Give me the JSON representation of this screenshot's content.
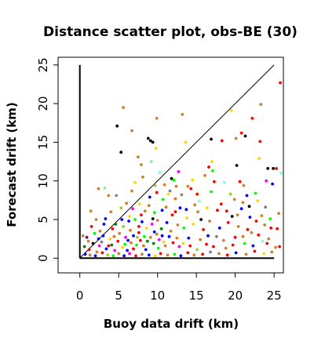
{
  "chart_data": {
    "type": "scatter",
    "title": "Distance scatter plot, obs-BE (30)",
    "xlabel": "Buoy data drift (km)",
    "ylabel": "Forecast drift (km)",
    "xlim": [
      -2.8,
      26.2
    ],
    "ylim": [
      -1.9,
      26.0
    ],
    "xticks": [
      "0",
      "5",
      "10",
      "15",
      "20",
      "25"
    ],
    "yticks": [
      "0",
      "5",
      "10",
      "15",
      "20",
      "25"
    ],
    "grid": false,
    "legend": "none",
    "reference_lines": [
      {
        "kind": "diagonal",
        "from": [
          0,
          0
        ],
        "to": [
          25,
          25
        ]
      },
      {
        "kind": "vertical",
        "from": [
          0,
          0
        ],
        "to": [
          0,
          25
        ]
      },
      {
        "kind": "horizontal",
        "from": [
          0,
          0
        ],
        "to": [
          25,
          0
        ]
      }
    ],
    "points": [
      [
        4.8,
        17.1,
        "#000000"
      ],
      [
        5.3,
        13.7,
        "#000000"
      ],
      [
        5.6,
        19.5,
        "#cd7f32"
      ],
      [
        6.7,
        16.5,
        "#cd7f32"
      ],
      [
        8.8,
        15.5,
        "#000000"
      ],
      [
        9.1,
        15.2,
        "#000000"
      ],
      [
        9.4,
        15.0,
        "#000000"
      ],
      [
        9.8,
        14.2,
        "#ffd700"
      ],
      [
        9.9,
        18.1,
        "#cd7f32"
      ],
      [
        13.2,
        18.6,
        "#cd7f32"
      ],
      [
        13.6,
        15.0,
        "#ffd700"
      ],
      [
        16.9,
        15.4,
        "#000000"
      ],
      [
        17.0,
        12.5,
        "#ffd700"
      ],
      [
        18.3,
        15.2,
        "#ff0000"
      ],
      [
        19.5,
        19.1,
        "#ffd700"
      ],
      [
        20.1,
        15.5,
        "#cd7f32"
      ],
      [
        20.8,
        16.2,
        "#ff0000"
      ],
      [
        21.3,
        15.8,
        "#000000"
      ],
      [
        22.2,
        18.1,
        "#ff0000"
      ],
      [
        23.2,
        15.1,
        "#ff0000"
      ],
      [
        23.3,
        19.9,
        "#cd7f32"
      ],
      [
        25.8,
        22.7,
        "#ff0000"
      ],
      [
        7.5,
        13.1,
        "#cd7f32"
      ],
      [
        7.9,
        12.1,
        "#cd7f32"
      ],
      [
        8.1,
        10.5,
        "#cd7f32"
      ],
      [
        9.2,
        12.5,
        "#90ee90"
      ],
      [
        9.7,
        9.4,
        "#9acd32"
      ],
      [
        10.3,
        11.1,
        "#7fffd4"
      ],
      [
        12.7,
        11.2,
        "#ff00ff"
      ],
      [
        12.1,
        10.1,
        "#00ff00"
      ],
      [
        13.9,
        9.3,
        "#cd7f32"
      ],
      [
        16.6,
        11.8,
        "#ff0000"
      ],
      [
        17.1,
        11.3,
        "#00ff00"
      ],
      [
        20.2,
        12.0,
        "#000000"
      ],
      [
        21.1,
        9.4,
        "#cd7f32"
      ],
      [
        23.1,
        12.9,
        "#ffd700"
      ],
      [
        24.2,
        11.6,
        "#000000"
      ],
      [
        24.9,
        11.6,
        "#000000"
      ],
      [
        25.3,
        11.6,
        "#ff0000"
      ],
      [
        25.9,
        11.0,
        "#7fffd4"
      ],
      [
        24.0,
        10.0,
        "#ff00ff"
      ],
      [
        24.8,
        9.6,
        "#0000ff"
      ],
      [
        22.6,
        8.4,
        "#00ff00"
      ],
      [
        21.0,
        7.2,
        "#cd7f32"
      ],
      [
        19.4,
        8.3,
        "#9acd32"
      ],
      [
        18.2,
        7.0,
        "#ff0000"
      ],
      [
        16.9,
        8.6,
        "#00ff00"
      ],
      [
        15.4,
        7.4,
        "#7fffd4"
      ],
      [
        14.3,
        9.0,
        "#ff0000"
      ],
      [
        12.9,
        6.5,
        "#0000ff"
      ],
      [
        11.4,
        8.3,
        "#ffd700"
      ],
      [
        10.6,
        6.2,
        "#0000ff"
      ],
      [
        9.4,
        5.1,
        "#000000"
      ],
      [
        8.9,
        6.8,
        "#cd7f32"
      ],
      [
        7.6,
        4.1,
        "#ff0000"
      ],
      [
        6.4,
        5.4,
        "#ffd700"
      ],
      [
        5.4,
        5.0,
        "#0000ff"
      ],
      [
        4.6,
        4.4,
        "#008000"
      ],
      [
        3.7,
        8.1,
        "#cd7f32"
      ],
      [
        2.4,
        9.0,
        "#cd7f32"
      ],
      [
        3.2,
        9.1,
        "#90ee90"
      ],
      [
        1.4,
        6.1,
        "#cd7f32"
      ],
      [
        4.7,
        8.1,
        "#778899"
      ],
      [
        6.7,
        8.7,
        "#cd7f32"
      ],
      [
        7.1,
        9.8,
        "#ffd700"
      ],
      [
        10.9,
        9.5,
        "#cd7f32"
      ],
      [
        11.6,
        8.7,
        "#808080"
      ],
      [
        12.3,
        7.7,
        "#cd7f32"
      ],
      [
        13.8,
        5.2,
        "#ffd700"
      ],
      [
        14.8,
        6.9,
        "#cd7f32"
      ],
      [
        15.6,
        5.0,
        "#000000"
      ],
      [
        17.7,
        6.2,
        "#ff0000"
      ],
      [
        19.6,
        5.4,
        "#000000"
      ],
      [
        20.8,
        6.4,
        "#0000ff"
      ],
      [
        21.8,
        6.7,
        "#000000"
      ],
      [
        22.7,
        4.8,
        "#ff0000"
      ],
      [
        23.8,
        4.3,
        "#cd7f32"
      ],
      [
        24.6,
        3.9,
        "#ff0000"
      ],
      [
        25.4,
        3.8,
        "#ff0000"
      ],
      [
        25.7,
        1.5,
        "#ff0000"
      ],
      [
        25.2,
        1.4,
        "#cd7f32"
      ],
      [
        23.5,
        2.2,
        "#7fffd4"
      ],
      [
        22.1,
        3.3,
        "#cd7f32"
      ],
      [
        21.2,
        1.9,
        "#00ff00"
      ],
      [
        20.0,
        2.7,
        "#ff0000"
      ],
      [
        18.8,
        1.3,
        "#cd7f32"
      ],
      [
        17.6,
        2.8,
        "#808080"
      ],
      [
        16.3,
        1.8,
        "#ff0000"
      ],
      [
        15.1,
        1.1,
        "#9acd32"
      ],
      [
        14.0,
        2.6,
        "#0000ff"
      ],
      [
        12.8,
        1.5,
        "#ff00ff"
      ],
      [
        11.7,
        3.5,
        "#cd7f32"
      ],
      [
        10.8,
        2.1,
        "#ffd700"
      ],
      [
        10.1,
        1.3,
        "#00ff00"
      ],
      [
        9.6,
        3.4,
        "#0000ff"
      ],
      [
        8.7,
        2.2,
        "#008000"
      ],
      [
        8.2,
        1.6,
        "#cd7f32"
      ],
      [
        7.4,
        2.7,
        "#9acd32"
      ],
      [
        6.9,
        1.2,
        "#ff0000"
      ],
      [
        6.2,
        2.3,
        "#0000ff"
      ],
      [
        5.8,
        1.8,
        "#00ff00"
      ],
      [
        5.1,
        3.2,
        "#cd7f32"
      ],
      [
        4.5,
        1.0,
        "#ff00ff"
      ],
      [
        3.9,
        2.5,
        "#ffd700"
      ],
      [
        3.4,
        1.2,
        "#0000ff"
      ],
      [
        2.8,
        2.1,
        "#808080"
      ],
      [
        2.2,
        0.8,
        "#cd7f32"
      ],
      [
        1.7,
        1.9,
        "#000000"
      ],
      [
        1.2,
        1.1,
        "#ff0000"
      ],
      [
        0.7,
        0.5,
        "#0000ff"
      ],
      [
        0.4,
        2.9,
        "#cd7f32"
      ],
      [
        0.9,
        2.7,
        "#800080"
      ],
      [
        1.9,
        3.2,
        "#00ff00"
      ],
      [
        2.6,
        3.5,
        "#cd7f32"
      ],
      [
        3.1,
        4.4,
        "#0000ff"
      ],
      [
        4.2,
        3.8,
        "#ff0000"
      ],
      [
        5.6,
        4.1,
        "#9acd32"
      ],
      [
        6.5,
        3.6,
        "#cd7f32"
      ],
      [
        7.1,
        5.0,
        "#00ff00"
      ],
      [
        8.0,
        4.7,
        "#0000ff"
      ],
      [
        8.6,
        3.9,
        "#ffd700"
      ],
      [
        9.3,
        4.4,
        "#ff00ff"
      ],
      [
        10.0,
        4.9,
        "#cd7f32"
      ],
      [
        10.5,
        3.8,
        "#008000"
      ],
      [
        11.2,
        4.6,
        "#0000ff"
      ],
      [
        11.9,
        5.6,
        "#ff0000"
      ],
      [
        12.6,
        4.3,
        "#cd7f32"
      ],
      [
        13.4,
        3.9,
        "#00ff00"
      ],
      [
        14.6,
        4.4,
        "#ffd700"
      ],
      [
        15.9,
        3.7,
        "#ff0000"
      ],
      [
        16.7,
        4.8,
        "#cd7f32"
      ],
      [
        18.0,
        3.9,
        "#0000ff"
      ],
      [
        19.1,
        4.6,
        "#ff0000"
      ],
      [
        20.4,
        4.1,
        "#cd7f32"
      ],
      [
        21.6,
        3.7,
        "#ff0000"
      ],
      [
        23.0,
        3.0,
        "#ff0000"
      ],
      [
        24.3,
        2.5,
        "#cd7f32"
      ],
      [
        25.6,
        5.8,
        "#cd7f32"
      ],
      [
        23.9,
        6.6,
        "#808080"
      ],
      [
        22.9,
        7.4,
        "#ffd700"
      ],
      [
        21.5,
        8.1,
        "#0000ff"
      ],
      [
        20.6,
        9.9,
        "#ff0000"
      ],
      [
        19.9,
        7.6,
        "#cd7f32"
      ],
      [
        18.6,
        9.8,
        "#7fffd4"
      ],
      [
        17.3,
        9.9,
        "#ff0000"
      ],
      [
        16.1,
        10.7,
        "#cd7f32"
      ],
      [
        15.1,
        8.3,
        "#ff0000"
      ],
      [
        14.5,
        10.1,
        "#ffd700"
      ],
      [
        13.1,
        8.2,
        "#808080"
      ],
      [
        12.4,
        9.3,
        "#cd7f32"
      ],
      [
        11.8,
        10.3,
        "#000000"
      ],
      [
        10.7,
        7.6,
        "#00ff00"
      ],
      [
        9.9,
        8.5,
        "#ff0000"
      ],
      [
        9.0,
        7.9,
        "#0000ff"
      ],
      [
        8.4,
        6.1,
        "#cd7f32"
      ],
      [
        7.7,
        7.0,
        "#ffd700"
      ],
      [
        6.8,
        6.4,
        "#ff00ff"
      ],
      [
        6.0,
        7.1,
        "#cd7f32"
      ],
      [
        5.3,
        6.5,
        "#9acd32"
      ],
      [
        4.0,
        6.0,
        "#cd7f32"
      ],
      [
        3.3,
        5.1,
        "#0000ff"
      ],
      [
        2.1,
        5.0,
        "#cd7f32"
      ],
      [
        1.5,
        4.1,
        "#ff0000"
      ],
      [
        0.6,
        1.5,
        "#008000"
      ],
      [
        1.3,
        0.4,
        "#cd7f32"
      ],
      [
        2.0,
        0.3,
        "#0000ff"
      ],
      [
        2.9,
        0.7,
        "#ff0000"
      ],
      [
        3.6,
        0.4,
        "#9acd32"
      ],
      [
        4.3,
        0.3,
        "#00ff00"
      ],
      [
        5.0,
        0.6,
        "#cd7f32"
      ],
      [
        5.7,
        0.3,
        "#0000ff"
      ],
      [
        6.4,
        0.6,
        "#ff00ff"
      ],
      [
        7.2,
        0.3,
        "#ff0000"
      ],
      [
        8.0,
        0.5,
        "#cd7f32"
      ],
      [
        8.9,
        0.4,
        "#0000ff"
      ],
      [
        9.7,
        0.3,
        "#ffd700"
      ],
      [
        10.4,
        0.6,
        "#ff0000"
      ],
      [
        11.3,
        0.4,
        "#cd7f32"
      ],
      [
        12.2,
        0.5,
        "#00ff00"
      ],
      [
        13.0,
        0.3,
        "#0000ff"
      ],
      [
        13.9,
        0.7,
        "#ff0000"
      ],
      [
        14.7,
        0.4,
        "#cd7f32"
      ],
      [
        15.8,
        0.5,
        "#ff0000"
      ],
      [
        16.8,
        0.8,
        "#808080"
      ],
      [
        17.9,
        0.6,
        "#cd7f32"
      ],
      [
        19.0,
        0.4,
        "#ff0000"
      ],
      [
        20.1,
        0.7,
        "#0000ff"
      ],
      [
        21.4,
        0.5,
        "#cd7f32"
      ],
      [
        22.5,
        0.9,
        "#ff0000"
      ],
      [
        23.7,
        0.6,
        "#ffd700"
      ],
      [
        24.7,
        0.8,
        "#cd7f32"
      ],
      [
        2.5,
        1.6,
        "#ff00ff"
      ],
      [
        3.0,
        2.9,
        "#0000ff"
      ],
      [
        4.1,
        1.7,
        "#008000"
      ],
      [
        4.9,
        2.2,
        "#ff0000"
      ],
      [
        5.5,
        1.4,
        "#ffd700"
      ],
      [
        6.1,
        1.0,
        "#0000ff"
      ],
      [
        6.6,
        2.0,
        "#cd7f32"
      ],
      [
        7.3,
        1.7,
        "#00ff00"
      ],
      [
        7.8,
        2.3,
        "#ff0000"
      ],
      [
        8.5,
        1.1,
        "#0000ff"
      ],
      [
        9.1,
        2.7,
        "#cd7f32"
      ],
      [
        9.5,
        1.9,
        "#008000"
      ],
      [
        10.2,
        2.4,
        "#ff00ff"
      ],
      [
        11.0,
        1.6,
        "#cd7f32"
      ],
      [
        11.5,
        2.8,
        "#0000ff"
      ],
      [
        12.0,
        2.0,
        "#ff0000"
      ],
      [
        12.5,
        2.6,
        "#cd7f32"
      ],
      [
        13.3,
        1.9,
        "#ffd700"
      ],
      [
        14.2,
        1.6,
        "#ff0000"
      ],
      [
        15.5,
        2.4,
        "#cd7f32"
      ],
      [
        16.5,
        2.9,
        "#0000ff"
      ],
      [
        17.2,
        1.5,
        "#ff0000"
      ],
      [
        18.5,
        2.3,
        "#cd7f32"
      ],
      [
        19.7,
        1.7,
        "#ff0000"
      ],
      [
        21.0,
        2.8,
        "#cd7f32"
      ],
      [
        22.3,
        1.6,
        "#0000ff"
      ],
      [
        24.1,
        1.9,
        "#ff0000"
      ],
      [
        6.9,
        2.9,
        "#0000ff"
      ],
      [
        7.6,
        3.3,
        "#ff0000"
      ],
      [
        8.3,
        2.8,
        "#00ff00"
      ],
      [
        9.9,
        3.1,
        "#cd7f32"
      ],
      [
        10.6,
        2.9,
        "#0000ff"
      ],
      [
        5.9,
        2.7,
        "#ff00ff"
      ],
      [
        4.4,
        2.8,
        "#cd7f32"
      ],
      [
        3.7,
        1.6,
        "#ff0000"
      ],
      [
        2.4,
        2.5,
        "#0000ff"
      ],
      [
        1.1,
        2.2,
        "#cd7f32"
      ],
      [
        6.3,
        4.8,
        "#0000ff"
      ],
      [
        7.9,
        5.6,
        "#ff0000"
      ],
      [
        9.6,
        5.9,
        "#00ff00"
      ],
      [
        11.1,
        6.6,
        "#cd7f32"
      ],
      [
        12.3,
        6.0,
        "#ff0000"
      ],
      [
        13.7,
        6.3,
        "#0000ff"
      ],
      [
        15.2,
        6.0,
        "#cd7f32"
      ],
      [
        16.4,
        6.5,
        "#ffd700"
      ],
      [
        18.9,
        6.1,
        "#ff0000"
      ],
      [
        20.3,
        5.6,
        "#cd7f32"
      ],
      [
        21.9,
        5.3,
        "#0000ff"
      ],
      [
        23.4,
        5.5,
        "#cd7f32"
      ],
      [
        24.5,
        5.1,
        "#00ff00"
      ]
    ]
  }
}
